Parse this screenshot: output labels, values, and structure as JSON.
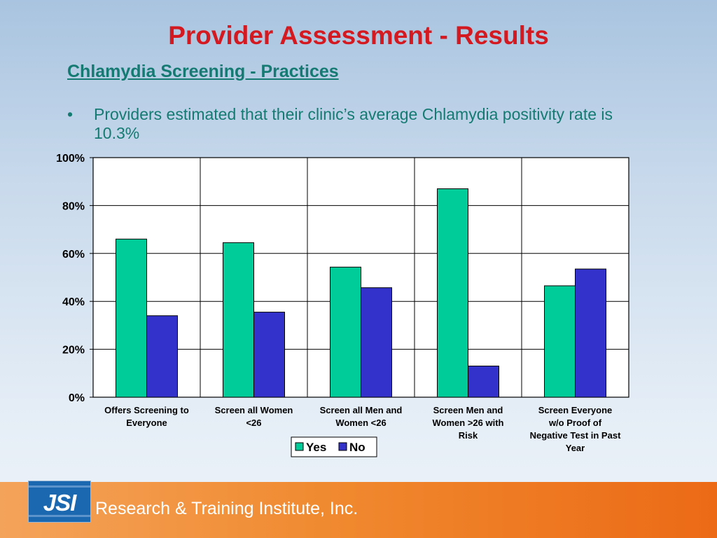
{
  "slide": {
    "title": "Provider Assessment - Results",
    "subtitle": "Chlamydia Screening - Practices",
    "bullet_marker": "•",
    "bullet_text": "Providers estimated that their clinic’s average Chlamydia positivity rate is 10.3%"
  },
  "footer": {
    "logo_text": "JSI",
    "institute": "Research & Training Institute, Inc."
  },
  "chart_data": {
    "type": "bar",
    "categories": [
      [
        "Offers Screening to",
        "Everyone"
      ],
      [
        "Screen all Women",
        "<26"
      ],
      [
        "Screen all Men and",
        "Women <26"
      ],
      [
        "Screen Men and",
        "Women >26 with",
        "Risk"
      ],
      [
        "Screen Everyone",
        "w/o Proof of",
        "Negative Test in Past",
        "Year"
      ]
    ],
    "series": [
      {
        "name": "Yes",
        "color": "#00cc99",
        "values": [
          66,
          64.5,
          54.3,
          87,
          46.5
        ]
      },
      {
        "name": "No",
        "color": "#3333cc",
        "values": [
          34,
          35.5,
          45.7,
          13,
          53.5
        ]
      }
    ],
    "yticks": [
      "0%",
      "20%",
      "40%",
      "60%",
      "80%",
      "100%"
    ],
    "ylim": [
      0,
      100
    ],
    "grid": true,
    "legend": "bottom-center"
  }
}
